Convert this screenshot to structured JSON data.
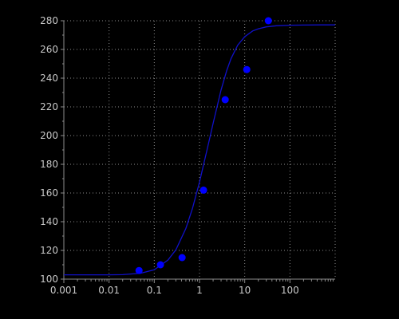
{
  "chart_data": {
    "type": "scatter",
    "title": "",
    "xlabel": "",
    "ylabel": "",
    "x_scale": "log",
    "xlim": [
      0.001,
      1000
    ],
    "ylim": [
      100,
      280
    ],
    "grid": true,
    "x_ticks": [
      0.001,
      0.01,
      0.1,
      1,
      10,
      100
    ],
    "x_tick_labels": [
      "0.001",
      "0.01",
      "0.1",
      "1",
      "10",
      "100"
    ],
    "y_ticks": [
      100,
      120,
      140,
      160,
      180,
      200,
      220,
      240,
      260,
      280
    ],
    "y_tick_labels": [
      "100",
      "120",
      "140",
      "160",
      "180",
      "200",
      "220",
      "240",
      "260",
      "280"
    ],
    "series": [
      {
        "type": "scatter",
        "x": [
          0.046,
          0.137,
          0.412,
          1.23,
          3.7,
          11.1,
          33.3
        ],
        "y": [
          106,
          110,
          115,
          162,
          225,
          246,
          280
        ]
      },
      {
        "type": "line",
        "x": [
          0.001,
          0.002,
          0.005,
          0.01,
          0.02,
          0.05,
          0.1,
          0.2,
          0.3,
          0.5,
          0.7,
          1,
          1.5,
          2,
          3,
          4,
          5,
          7,
          10,
          15,
          20,
          30,
          50,
          100,
          200,
          500,
          1000
        ],
        "y": [
          103.0,
          103.0,
          103.0,
          103.0,
          103.1,
          104.1,
          106.5,
          113.3,
          120.4,
          135.3,
          149.3,
          167.6,
          191.4,
          208.6,
          231.7,
          245.3,
          253.7,
          263.0,
          268.9,
          272.9,
          274.4,
          275.7,
          276.5,
          276.9,
          277.0,
          277.1,
          277.1
        ]
      }
    ],
    "colors": {
      "background": "#000000",
      "point": "#0000ff",
      "curve": "#1010c8",
      "grid": "#8c8c8c",
      "axis": "#8c8c8c",
      "tick_text": "#c8c8c8"
    }
  }
}
